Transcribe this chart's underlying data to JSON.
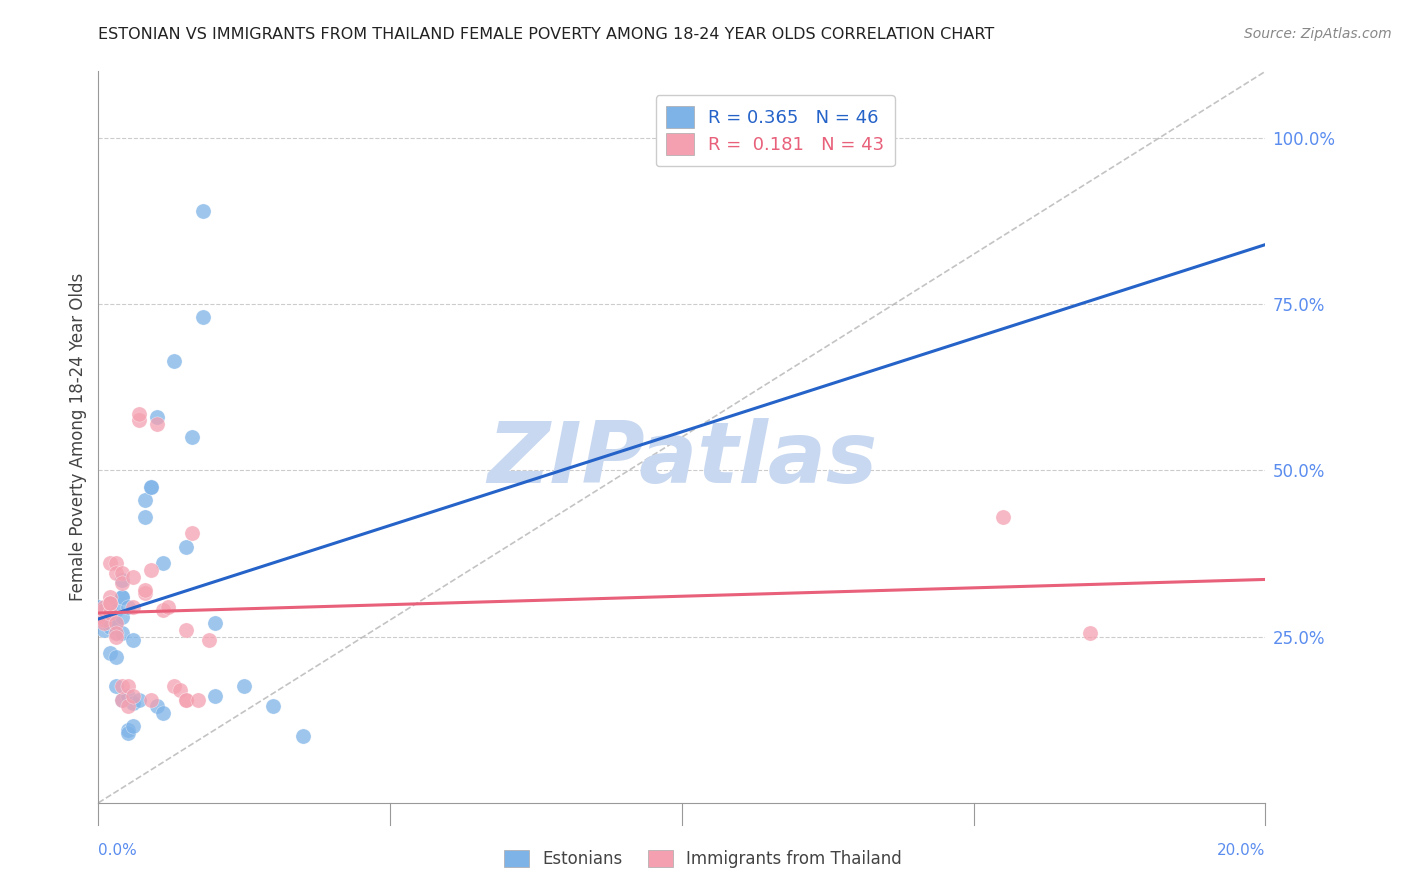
{
  "title": "ESTONIAN VS IMMIGRANTS FROM THAILAND FEMALE POVERTY AMONG 18-24 YEAR OLDS CORRELATION CHART",
  "source": "Source: ZipAtlas.com",
  "ylabel": "Female Poverty Among 18-24 Year Olds",
  "x_label_bottom_left": "0.0%",
  "x_label_bottom_right": "20.0%",
  "right_ytick_labels": [
    "100.0%",
    "75.0%",
    "50.0%",
    "25.0%"
  ],
  "right_ytick_values": [
    1.0,
    0.75,
    0.5,
    0.25
  ],
  "xlim": [
    0.0,
    0.2
  ],
  "ylim": [
    0.0,
    1.1
  ],
  "blue_R": 0.365,
  "blue_N": 46,
  "pink_R": 0.181,
  "pink_N": 43,
  "watermark": "ZIPatlas",
  "legend_label_blue": "Estonians",
  "legend_label_pink": "Immigrants from Thailand",
  "blue_color": "#7EB3E8",
  "pink_color": "#F4A0B0",
  "blue_line_color": "#2563C9",
  "pink_line_color": "#E8607A",
  "title_color": "#222222",
  "right_axis_color": "#5B8DEF",
  "watermark_color": "#C8D8F0",
  "grid_color": "#CCCCCC",
  "blue_scatter": [
    [
      0.0,
      0.295
    ],
    [
      0.001,
      0.29
    ],
    [
      0.001,
      0.26
    ],
    [
      0.001,
      0.28
    ],
    [
      0.002,
      0.295
    ],
    [
      0.002,
      0.3
    ],
    [
      0.002,
      0.265
    ],
    [
      0.002,
      0.27
    ],
    [
      0.002,
      0.225
    ],
    [
      0.003,
      0.22
    ],
    [
      0.003,
      0.255
    ],
    [
      0.003,
      0.27
    ],
    [
      0.003,
      0.29
    ],
    [
      0.003,
      0.175
    ],
    [
      0.004,
      0.28
    ],
    [
      0.004,
      0.255
    ],
    [
      0.004,
      0.31
    ],
    [
      0.004,
      0.31
    ],
    [
      0.004,
      0.335
    ],
    [
      0.004,
      0.155
    ],
    [
      0.005,
      0.295
    ],
    [
      0.005,
      0.16
    ],
    [
      0.005,
      0.11
    ],
    [
      0.005,
      0.105
    ],
    [
      0.006,
      0.15
    ],
    [
      0.006,
      0.115
    ],
    [
      0.006,
      0.245
    ],
    [
      0.007,
      0.155
    ],
    [
      0.008,
      0.43
    ],
    [
      0.008,
      0.455
    ],
    [
      0.009,
      0.475
    ],
    [
      0.009,
      0.475
    ],
    [
      0.01,
      0.58
    ],
    [
      0.01,
      0.145
    ],
    [
      0.011,
      0.36
    ],
    [
      0.011,
      0.135
    ],
    [
      0.013,
      0.665
    ],
    [
      0.015,
      0.385
    ],
    [
      0.016,
      0.55
    ],
    [
      0.018,
      0.73
    ],
    [
      0.018,
      0.89
    ],
    [
      0.02,
      0.27
    ],
    [
      0.02,
      0.16
    ],
    [
      0.025,
      0.175
    ],
    [
      0.03,
      0.145
    ],
    [
      0.035,
      0.1
    ]
  ],
  "pink_scatter": [
    [
      0.0,
      0.28
    ],
    [
      0.001,
      0.275
    ],
    [
      0.001,
      0.27
    ],
    [
      0.001,
      0.29
    ],
    [
      0.001,
      0.295
    ],
    [
      0.002,
      0.31
    ],
    [
      0.002,
      0.285
    ],
    [
      0.002,
      0.3
    ],
    [
      0.002,
      0.3
    ],
    [
      0.002,
      0.36
    ],
    [
      0.003,
      0.36
    ],
    [
      0.003,
      0.345
    ],
    [
      0.003,
      0.27
    ],
    [
      0.003,
      0.255
    ],
    [
      0.003,
      0.25
    ],
    [
      0.004,
      0.345
    ],
    [
      0.004,
      0.33
    ],
    [
      0.004,
      0.155
    ],
    [
      0.004,
      0.175
    ],
    [
      0.005,
      0.145
    ],
    [
      0.005,
      0.175
    ],
    [
      0.006,
      0.34
    ],
    [
      0.006,
      0.16
    ],
    [
      0.006,
      0.295
    ],
    [
      0.007,
      0.575
    ],
    [
      0.007,
      0.585
    ],
    [
      0.008,
      0.315
    ],
    [
      0.008,
      0.32
    ],
    [
      0.009,
      0.35
    ],
    [
      0.009,
      0.155
    ],
    [
      0.01,
      0.57
    ],
    [
      0.011,
      0.29
    ],
    [
      0.012,
      0.295
    ],
    [
      0.013,
      0.175
    ],
    [
      0.014,
      0.17
    ],
    [
      0.015,
      0.26
    ],
    [
      0.015,
      0.155
    ],
    [
      0.015,
      0.155
    ],
    [
      0.016,
      0.405
    ],
    [
      0.017,
      0.155
    ],
    [
      0.019,
      0.245
    ],
    [
      0.155,
      0.43
    ],
    [
      0.17,
      0.255
    ]
  ]
}
